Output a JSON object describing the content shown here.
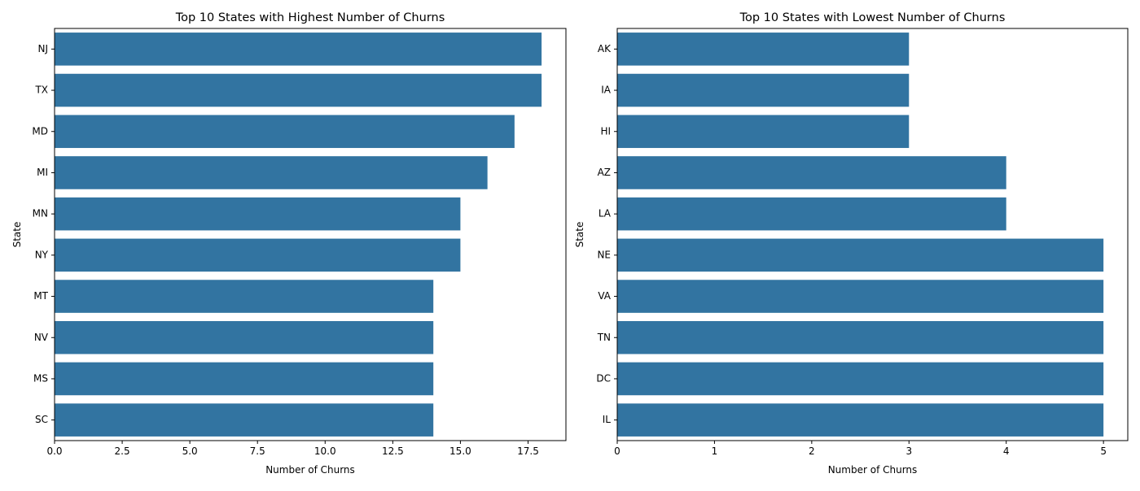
{
  "chart_data": [
    {
      "type": "bar",
      "orientation": "horizontal",
      "title": "Top 10 States with Highest Number of Churns",
      "xlabel": "Number of Churns",
      "ylabel": "State",
      "categories": [
        "NJ",
        "TX",
        "MD",
        "MI",
        "MN",
        "NY",
        "MT",
        "NV",
        "MS",
        "SC"
      ],
      "values": [
        18,
        18,
        17,
        16,
        15,
        15,
        14,
        14,
        14,
        14
      ],
      "xlim": [
        0,
        18.9
      ],
      "xticks": [
        0,
        2.5,
        5,
        7.5,
        10,
        12.5,
        15,
        17.5
      ],
      "xtick_labels": [
        "0.0",
        "2.5",
        "5.0",
        "7.5",
        "10.0",
        "12.5",
        "15.0",
        "17.5"
      ],
      "grid": false,
      "bar_color": "#3274a1"
    },
    {
      "type": "bar",
      "orientation": "horizontal",
      "title": "Top 10 States with Lowest Number of Churns",
      "xlabel": "Number of Churns",
      "ylabel": "State",
      "categories": [
        "AK",
        "IA",
        "HI",
        "AZ",
        "LA",
        "NE",
        "VA",
        "TN",
        "DC",
        "IL"
      ],
      "values": [
        3,
        3,
        3,
        4,
        4,
        5,
        5,
        5,
        5,
        5
      ],
      "xlim": [
        0,
        5.25
      ],
      "xticks": [
        0,
        1,
        2,
        3,
        4,
        5
      ],
      "xtick_labels": [
        "0",
        "1",
        "2",
        "3",
        "4",
        "5"
      ],
      "grid": false,
      "bar_color": "#3274a1"
    }
  ]
}
